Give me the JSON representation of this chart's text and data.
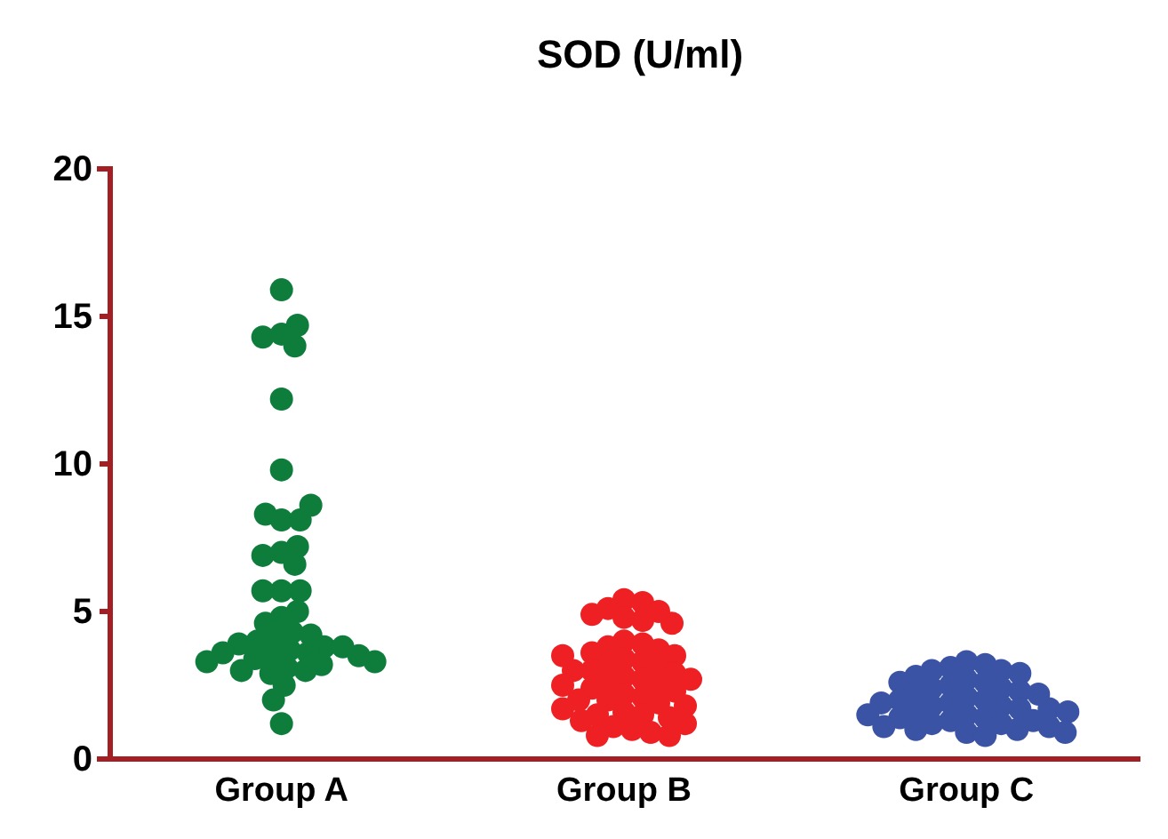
{
  "chart_data": {
    "type": "scatter",
    "title": "SOD (U/ml)",
    "categories": [
      "Group A",
      "Group B",
      "Group C"
    ],
    "ylim": [
      0,
      20
    ],
    "yticks": [
      0,
      5,
      10,
      15,
      20
    ],
    "marker": "circle",
    "grid": false,
    "series": [
      {
        "color": "#0e7d3c",
        "x": [
          "Group A",
          "Group A",
          "Group A",
          "Group A",
          "Group A",
          "Group A",
          "Group A",
          "Group A",
          "Group A",
          "Group A",
          "Group A",
          "Group A",
          "Group A",
          "Group A",
          "Group A",
          "Group A",
          "Group A",
          "Group A",
          "Group A",
          "Group A",
          "Group A",
          "Group A",
          "Group A",
          "Group A",
          "Group A",
          "Group A",
          "Group A",
          "Group A",
          "Group A",
          "Group A",
          "Group A",
          "Group A",
          "Group A",
          "Group A",
          "Group A",
          "Group A",
          "Group A",
          "Group A",
          "Group A",
          "Group A",
          "Group A",
          "Group A",
          "Group A",
          "Group A"
        ],
        "values": [
          15.9,
          14.4,
          14.7,
          14.0,
          14.3,
          12.2,
          9.8,
          8.1,
          8.1,
          8.3,
          8.6,
          7.0,
          6.6,
          6.9,
          7.2,
          5.7,
          5.7,
          5.7,
          4.8,
          5.0,
          4.6,
          4.3,
          4.2,
          4.1,
          4.0,
          3.9,
          3.8,
          3.8,
          3.7,
          3.6,
          3.6,
          3.5,
          3.5,
          3.4,
          3.3,
          3.3,
          3.2,
          3.1,
          3.0,
          3.0,
          2.9,
          2.5,
          2.0,
          1.2
        ]
      },
      {
        "color": "#ee2024",
        "x": [
          "Group B",
          "Group B",
          "Group B",
          "Group B",
          "Group B",
          "Group B",
          "Group B",
          "Group B",
          "Group B",
          "Group B",
          "Group B",
          "Group B",
          "Group B",
          "Group B",
          "Group B",
          "Group B",
          "Group B",
          "Group B",
          "Group B",
          "Group B",
          "Group B",
          "Group B",
          "Group B",
          "Group B",
          "Group B",
          "Group B",
          "Group B",
          "Group B",
          "Group B",
          "Group B",
          "Group B",
          "Group B",
          "Group B",
          "Group B",
          "Group B",
          "Group B",
          "Group B",
          "Group B",
          "Group B",
          "Group B",
          "Group B",
          "Group B",
          "Group B",
          "Group B",
          "Group B",
          "Group B",
          "Group B",
          "Group B"
        ],
        "values": [
          5.4,
          5.3,
          5.1,
          5.0,
          4.9,
          4.8,
          4.7,
          4.6,
          4.0,
          3.9,
          3.8,
          3.7,
          3.6,
          3.5,
          3.4,
          3.3,
          3.2,
          3.1,
          3.0,
          3.0,
          2.9,
          2.8,
          2.7,
          2.6,
          2.5,
          2.5,
          2.4,
          2.3,
          2.2,
          2.1,
          2.0,
          2.0,
          1.9,
          1.8,
          1.7,
          1.6,
          1.5,
          1.5,
          1.4,
          1.3,
          1.2,
          1.1,
          1.0,
          0.9,
          0.8,
          0.8,
          3.5,
          2.7
        ]
      },
      {
        "color": "#3b53a4",
        "x": [
          "Group C",
          "Group C",
          "Group C",
          "Group C",
          "Group C",
          "Group C",
          "Group C",
          "Group C",
          "Group C",
          "Group C",
          "Group C",
          "Group C",
          "Group C",
          "Group C",
          "Group C",
          "Group C",
          "Group C",
          "Group C",
          "Group C",
          "Group C",
          "Group C",
          "Group C",
          "Group C",
          "Group C",
          "Group C",
          "Group C",
          "Group C",
          "Group C",
          "Group C",
          "Group C",
          "Group C",
          "Group C",
          "Group C",
          "Group C",
          "Group C",
          "Group C",
          "Group C",
          "Group C",
          "Group C",
          "Group C",
          "Group C",
          "Group C"
        ],
        "values": [
          3.3,
          3.2,
          3.1,
          3.0,
          3.0,
          2.9,
          2.8,
          2.7,
          2.6,
          2.6,
          2.5,
          2.4,
          2.4,
          2.3,
          2.2,
          2.2,
          2.1,
          2.0,
          2.0,
          1.9,
          1.9,
          1.8,
          1.8,
          1.7,
          1.7,
          1.6,
          1.6,
          1.5,
          1.5,
          1.4,
          1.4,
          1.3,
          1.3,
          1.2,
          1.2,
          1.1,
          1.1,
          1.0,
          1.0,
          0.9,
          0.9,
          0.8
        ]
      }
    ]
  }
}
